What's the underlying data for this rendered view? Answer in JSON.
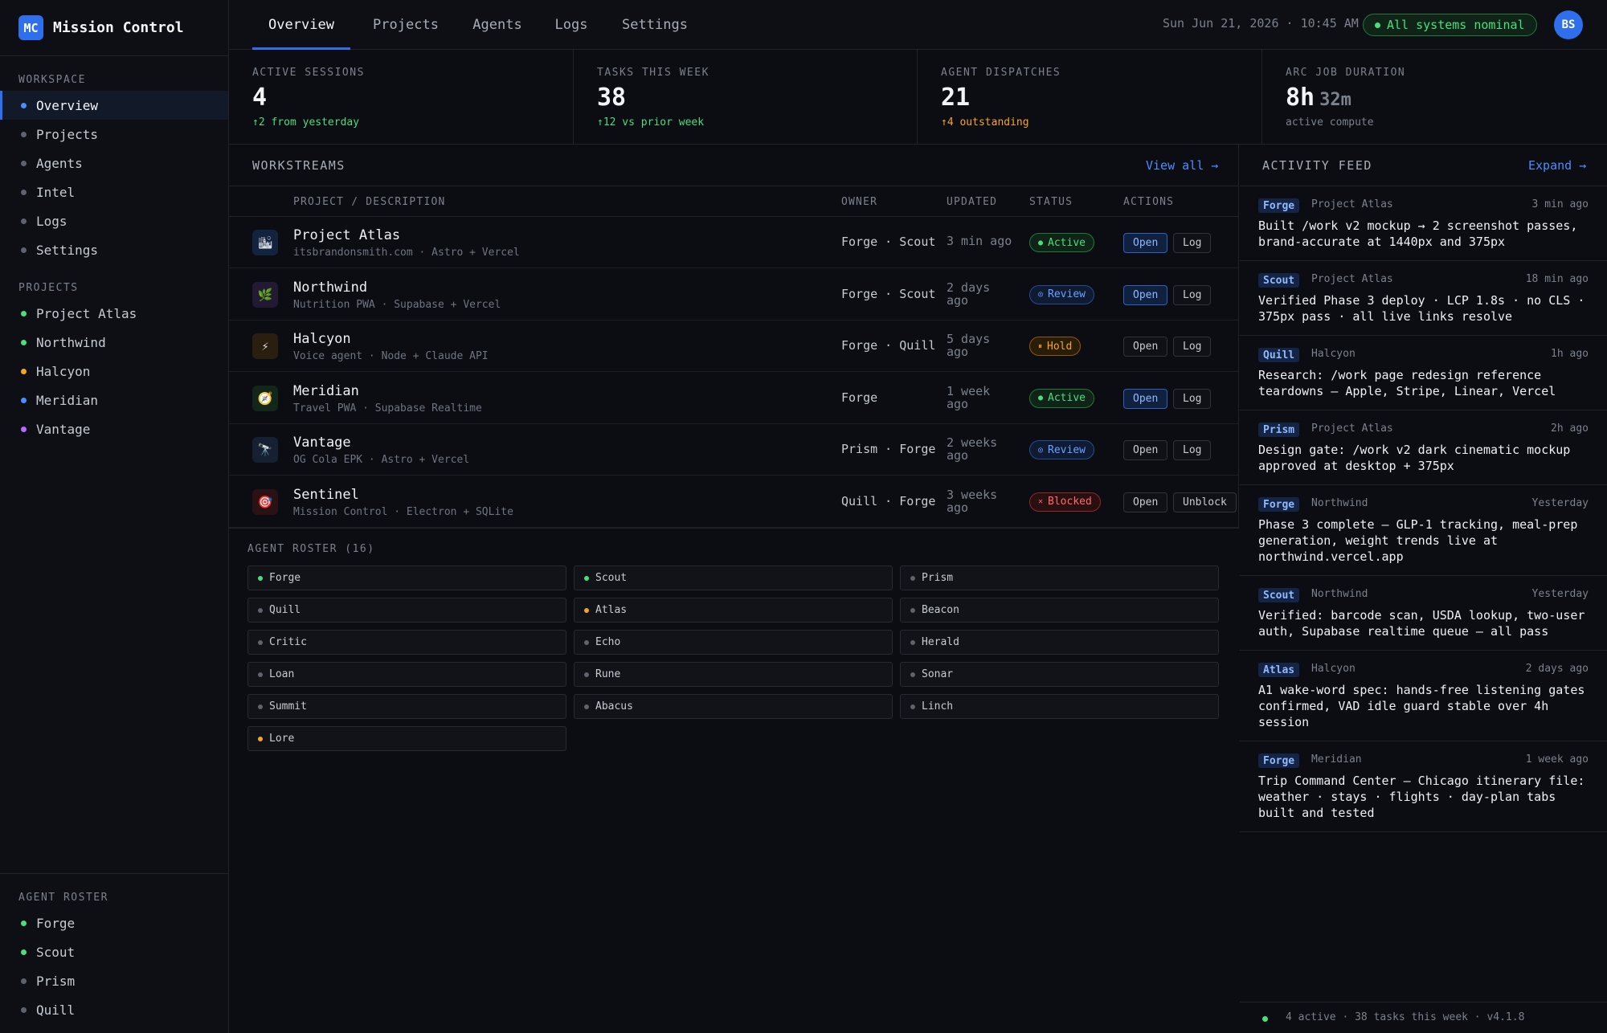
{
  "colors": {
    "accent": "#2f6feb",
    "green": "#4ade80",
    "amber": "#f5a524",
    "blue": "#4c8dff",
    "purple": "#b86bff",
    "gray": "#5d636e",
    "red": "#ff6b6b"
  },
  "brand": {
    "logo": "MC",
    "title": "Mission Control"
  },
  "sidebar": {
    "workspace_label": "WORKSPACE",
    "workspace": [
      {
        "label": "Overview",
        "active": true
      },
      {
        "label": "Projects"
      },
      {
        "label": "Agents"
      },
      {
        "label": "Intel"
      },
      {
        "label": "Logs"
      },
      {
        "label": "Settings"
      }
    ],
    "projects_label": "PROJECTS",
    "projects": [
      {
        "label": "Project Atlas",
        "color": "green"
      },
      {
        "label": "Northwind",
        "color": "green"
      },
      {
        "label": "Halcyon",
        "color": "amber"
      },
      {
        "label": "Meridian",
        "color": "blue"
      },
      {
        "label": "Vantage",
        "color": "purple"
      }
    ],
    "roster_label": "AGENT ROSTER",
    "roster": [
      {
        "label": "Forge",
        "color": "green"
      },
      {
        "label": "Scout",
        "color": "green"
      },
      {
        "label": "Prism",
        "color": "gray"
      },
      {
        "label": "Quill",
        "color": "gray"
      }
    ]
  },
  "topnav": {
    "tabs": [
      "Overview",
      "Projects",
      "Agents",
      "Logs",
      "Settings"
    ],
    "datetime": "Sun Jun 21, 2026 · 10:45 AM",
    "status": "All systems nominal",
    "avatar": "BS"
  },
  "stats": [
    {
      "label": "ACTIVE SESSIONS",
      "value": "4",
      "minor": "",
      "delta": "↑2 from yesterday",
      "tone": "green"
    },
    {
      "label": "TASKS THIS WEEK",
      "value": "38",
      "minor": "",
      "delta": "↑12 vs prior week",
      "tone": "green"
    },
    {
      "label": "AGENT DISPATCHES",
      "value": "21",
      "minor": "",
      "delta": "↑4 outstanding",
      "tone": "amber"
    },
    {
      "label": "ARC JOB DURATION",
      "value": "8h",
      "minor": "32m",
      "delta": "active compute",
      "tone": "muted"
    }
  ],
  "workstreams": {
    "title": "WORKSTREAMS",
    "view_all": "View all →",
    "columns": {
      "project": "PROJECT / DESCRIPTION",
      "owner": "OWNER",
      "updated": "UPDATED",
      "status": "STATUS",
      "actions": "ACTIONS"
    },
    "rows": [
      {
        "icon": "🏙",
        "icon_name": "city-icon",
        "icon_bg": "#13233d",
        "name": "Project Atlas",
        "desc": "itsbrandonsmith.com · Astro + Vercel",
        "owner": "Forge · Scout",
        "updated": "3 min ago",
        "status": "Active",
        "status_icon": "●",
        "kind": "active",
        "open_primary": true,
        "action2": "Log"
      },
      {
        "icon": "🌿",
        "icon_name": "leaf-icon",
        "icon_bg": "#221a33",
        "name": "Northwind",
        "desc": "Nutrition PWA · Supabase + Vercel",
        "owner": "Forge · Scout",
        "updated": "2 days ago",
        "status": "Review",
        "status_icon": "◎",
        "kind": "review",
        "open_primary": true,
        "action2": "Log"
      },
      {
        "icon": "⚡",
        "icon_name": "lightning-icon",
        "icon_bg": "#2a1f0e",
        "name": "Halcyon",
        "desc": "Voice agent · Node + Claude API",
        "owner": "Forge · Quill",
        "updated": "5 days ago",
        "status": "Hold",
        "status_icon": "⏸",
        "kind": "hold",
        "open_primary": false,
        "action2": "Log"
      },
      {
        "icon": "🧭",
        "icon_name": "compass-icon",
        "icon_bg": "#12261a",
        "name": "Meridian",
        "desc": "Travel PWA · Supabase Realtime",
        "owner": "Forge",
        "updated": "1 week ago",
        "status": "Active",
        "status_icon": "●",
        "kind": "active",
        "open_primary": true,
        "action2": "Log"
      },
      {
        "icon": "🔭",
        "icon_name": "telescope-icon",
        "icon_bg": "#162033",
        "name": "Vantage",
        "desc": "OG Cola EPK · Astro + Vercel",
        "owner": "Prism · Forge",
        "updated": "2 weeks ago",
        "status": "Review",
        "status_icon": "◎",
        "kind": "review",
        "open_primary": false,
        "action2": "Log"
      },
      {
        "icon": "🎯",
        "icon_name": "target-icon",
        "icon_bg": "#2a1214",
        "name": "Sentinel",
        "desc": "Mission Control · Electron + SQLite",
        "owner": "Quill · Forge",
        "updated": "3 weeks ago",
        "status": "Blocked",
        "status_icon": "✕",
        "kind": "blocked",
        "open_primary": false,
        "action2": "Unblock"
      }
    ],
    "open_label": "Open"
  },
  "roster": {
    "title": "AGENT ROSTER (16)",
    "agents": [
      {
        "name": "Forge",
        "color": "green"
      },
      {
        "name": "Scout",
        "color": "green"
      },
      {
        "name": "Prism",
        "color": "gray"
      },
      {
        "name": "Quill",
        "color": "gray"
      },
      {
        "name": "Atlas",
        "color": "amber"
      },
      {
        "name": "Beacon",
        "color": "gray"
      },
      {
        "name": "Critic",
        "color": "gray"
      },
      {
        "name": "Echo",
        "color": "gray"
      },
      {
        "name": "Herald",
        "color": "gray"
      },
      {
        "name": "Loan",
        "color": "gray"
      },
      {
        "name": "Rune",
        "color": "gray"
      },
      {
        "name": "Sonar",
        "color": "gray"
      },
      {
        "name": "Summit",
        "color": "gray"
      },
      {
        "name": "Abacus",
        "color": "gray"
      },
      {
        "name": "Linch",
        "color": "gray"
      },
      {
        "name": "Lore",
        "color": "amber"
      }
    ]
  },
  "feed": {
    "title": "ACTIVITY FEED",
    "expand": "Expand →",
    "items": [
      {
        "agent": "Forge",
        "project": "Project Atlas",
        "time": "3 min ago",
        "text": "Built /work v2 mockup → 2 screenshot passes, brand-accurate at 1440px and 375px"
      },
      {
        "agent": "Scout",
        "project": "Project Atlas",
        "time": "18 min ago",
        "text": "Verified Phase 3 deploy · LCP 1.8s · no CLS · 375px pass · all live links resolve"
      },
      {
        "agent": "Quill",
        "project": "Halcyon",
        "time": "1h ago",
        "text": "Research: /work page redesign reference teardowns — Apple, Stripe, Linear, Vercel"
      },
      {
        "agent": "Prism",
        "project": "Project Atlas",
        "time": "2h ago",
        "text": "Design gate: /work v2 dark cinematic mockup approved at desktop + 375px"
      },
      {
        "agent": "Forge",
        "project": "Northwind",
        "time": "Yesterday",
        "text": "Phase 3 complete — GLP-1 tracking, meal-prep generation, weight trends live at northwind.vercel.app"
      },
      {
        "agent": "Scout",
        "project": "Northwind",
        "time": "Yesterday",
        "text": "Verified: barcode scan, USDA lookup, two-user auth, Supabase realtime queue — all pass"
      },
      {
        "agent": "Atlas",
        "project": "Halcyon",
        "time": "2 days ago",
        "text": "A1 wake-word spec: hands-free listening gates confirmed, VAD idle guard stable over 4h session"
      },
      {
        "agent": "Forge",
        "project": "Meridian",
        "time": "1 week ago",
        "text": "Trip Command Center — Chicago itinerary file: weather · stays · flights · day-plan tabs built and tested"
      }
    ],
    "footer": "4 active · 38 tasks this week · v4.1.8"
  }
}
